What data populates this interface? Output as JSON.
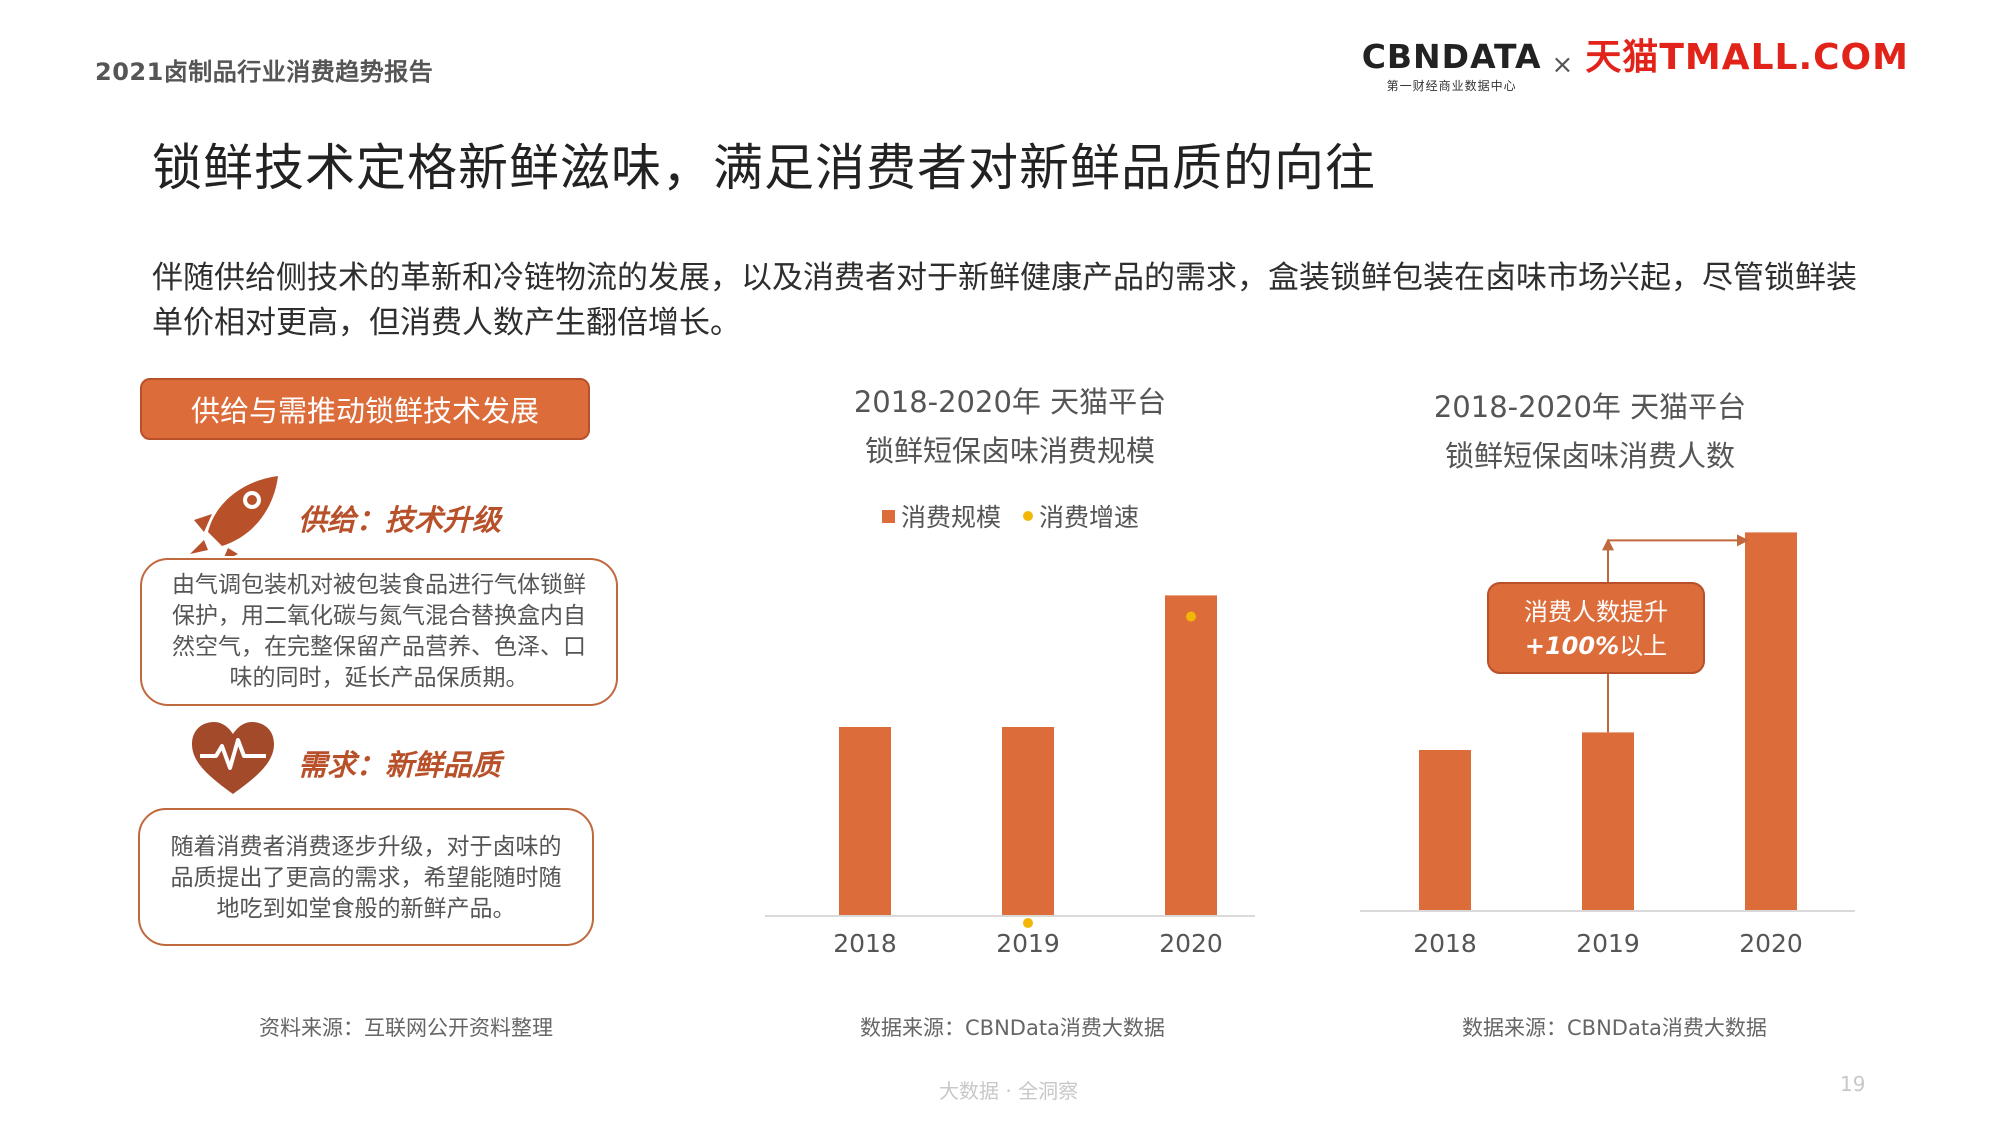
{
  "header": {
    "report_title": "2021卤制品行业消费趋势报告",
    "cbndata_logo": "CBNDATA",
    "cbndata_sub": "第一财经商业数据中心",
    "times": "×",
    "tmall_logo": "天猫TMALL.COM"
  },
  "headline": "锁鲜技术定格新鲜滋味，满足消费者对新鲜品质的向往",
  "intro": "伴随供给侧技术的革新和冷链物流的发展，以及消费者对于新鲜健康产品的需求，盒装锁鲜包装在卤味市场兴起，尽管锁鲜装单价相对更高，但消费人数产生翻倍增长。",
  "left_panel": {
    "banner": "供给与需推动锁鲜技术发展",
    "supply_title": "供给：技术升级",
    "supply_text": "由气调包装机对被包装食品进行气体锁鲜保护，用二氧化碳与氮气混合替换盒内自然空气，在完整保留产品营养、色泽、口味的同时，延长产品保质期。",
    "demand_title": "需求：新鲜品质",
    "demand_text": "随着消费者消费逐步升级，对于卤味的品质提出了更高的需求，希望能随时随地吃到如堂食般的新鲜产品。",
    "source": "资料来源：互联网公开资料整理",
    "icons": [
      "rocket-icon",
      "heart-pulse-icon"
    ]
  },
  "chart_data": [
    {
      "type": "bar",
      "title_line1": "2018-2020年 天猫平台",
      "title_line2": "锁鲜短保卤味消费规模",
      "categories": [
        "2018",
        "2019",
        "2020"
      ],
      "series": [
        {
          "name": "消费规模",
          "type": "bar",
          "values": [
            1.0,
            1.0,
            1.7
          ],
          "color": "#dd6c3b"
        },
        {
          "name": "消费增速",
          "type": "scatter",
          "values": [
            null,
            0.0,
            1.63
          ],
          "color": "#f2b705"
        }
      ],
      "legend_position": "top",
      "grid": false,
      "source": "数据来源：CBNData消费大数据"
    },
    {
      "type": "bar",
      "title_line1": "2018-2020年 天猫平台",
      "title_line2": "锁鲜短保卤味消费人数",
      "categories": [
        "2018",
        "2019",
        "2020"
      ],
      "series": [
        {
          "name": "",
          "values": [
            1.0,
            1.11,
            2.36
          ],
          "color": "#dd6c3b"
        }
      ],
      "annotation": {
        "line1": "消费人数提升",
        "line2_bold": "+100%",
        "line2_rest": "以上"
      },
      "grid": false,
      "source": "数据来源：CBNData消费大数据"
    }
  ],
  "footer": {
    "text": "大数据 · 全洞察",
    "page": "19"
  }
}
